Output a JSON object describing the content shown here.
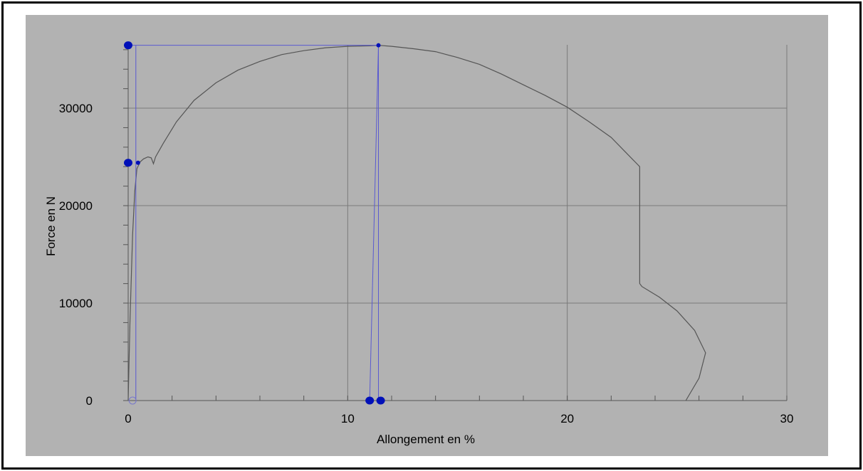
{
  "chart_data": {
    "type": "line",
    "title": "",
    "xlabel": "Allongement en %",
    "ylabel": "Force en N",
    "xlim": [
      0,
      30
    ],
    "ylim": [
      0,
      36500
    ],
    "x_ticks": [
      "0",
      "10",
      "20",
      "30"
    ],
    "y_ticks": [
      "0",
      "10000",
      "20000",
      "30000"
    ],
    "x_tick_values": [
      0,
      10,
      20,
      30
    ],
    "y_tick_values": [
      0,
      10000,
      20000,
      30000
    ],
    "grid": true,
    "legend": "none",
    "series": [
      {
        "style": "curve",
        "x": [
          0,
          0.08,
          0.2,
          0.3,
          0.4,
          0.55,
          0.7,
          0.9,
          1.05,
          1.15,
          1.25,
          1.6,
          2.2,
          3,
          4,
          5,
          6,
          7,
          8,
          9,
          10,
          11,
          11.4,
          12,
          13,
          14,
          15,
          16,
          17,
          18,
          19,
          20,
          21,
          22,
          23.3,
          23.3,
          23.4,
          24.2,
          25,
          25.8,
          26.3,
          26,
          25.4
        ],
        "y": [
          0,
          8000,
          17000,
          21500,
          23800,
          24500,
          24800,
          25000,
          24900,
          24300,
          25000,
          26400,
          28600,
          30800,
          32600,
          33900,
          34800,
          35500,
          35900,
          36200,
          36350,
          36400,
          36450,
          36350,
          36100,
          35800,
          35200,
          34500,
          33500,
          32400,
          31300,
          30100,
          28600,
          27000,
          24000,
          12000,
          11700,
          10600,
          9200,
          7200,
          4900,
          2300,
          0
        ]
      },
      {
        "style": "marker",
        "x": [
          0,
          0.35,
          0.35,
          11.4,
          11.4,
          11.0,
          0
        ],
        "y": [
          36450,
          36450,
          24400,
          24400,
          36450,
          0,
          24400
        ]
      }
    ],
    "colors": {
      "curve": "#555555",
      "marker_line": "#5a5ad0",
      "marker_point": "#0010b8",
      "plot_bg": "#b2b2b2",
      "grid": "#7a7a7a"
    }
  }
}
